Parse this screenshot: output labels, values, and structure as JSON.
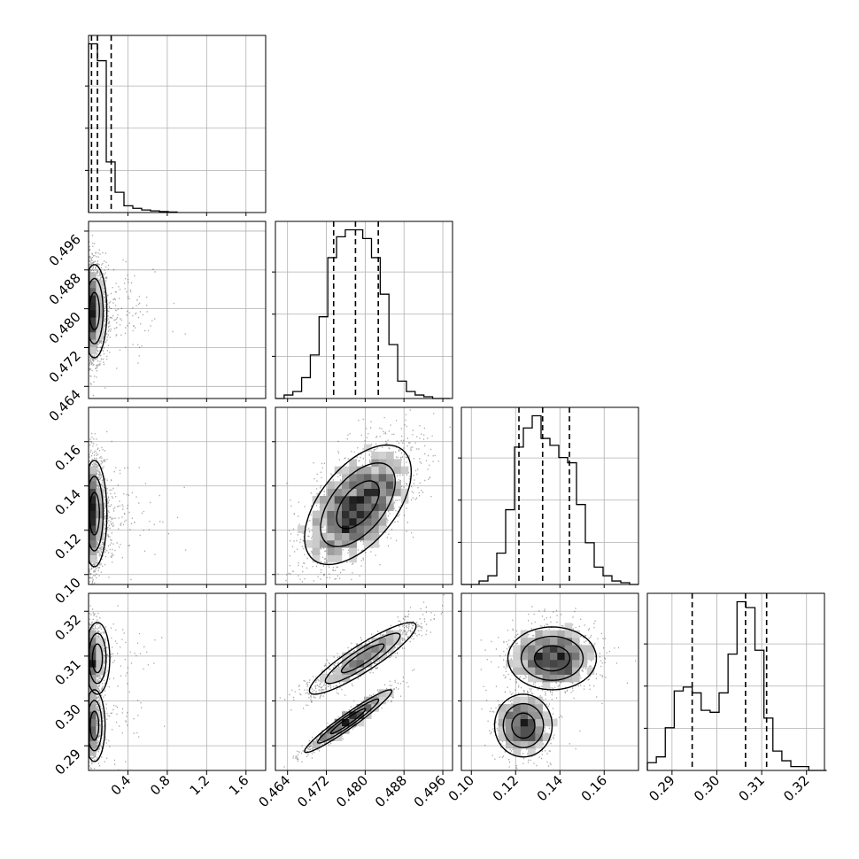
{
  "chart_data": {
    "type": "corner",
    "title": "",
    "grid": true,
    "parameters": [
      {
        "index": 0,
        "range": [
          0.0,
          1.8
        ],
        "ticks": [
          0.4,
          0.8,
          1.2,
          1.6
        ],
        "tick_labels": [
          "0.4",
          "0.8",
          "1.2",
          "1.6"
        ],
        "quantiles": [
          0.03,
          0.09,
          0.23
        ]
      },
      {
        "index": 1,
        "range": [
          0.4615,
          0.498
        ],
        "ticks": [
          0.464,
          0.472,
          0.48,
          0.488,
          0.496
        ],
        "tick_labels": [
          "0.464",
          "0.472",
          "0.480",
          "0.488",
          "0.496"
        ],
        "quantiles": [
          0.4735,
          0.478,
          0.4827
        ]
      },
      {
        "index": 2,
        "range": [
          0.0955,
          0.1755
        ],
        "ticks": [
          0.1,
          0.12,
          0.14,
          0.16
        ],
        "tick_labels": [
          "0.10",
          "0.12",
          "0.14",
          "0.16"
        ],
        "quantiles": [
          0.1215,
          0.1322,
          0.1443
        ]
      },
      {
        "index": 3,
        "range": [
          0.2845,
          0.324
        ],
        "ticks": [
          0.29,
          0.3,
          0.31,
          0.32
        ],
        "tick_labels": [
          "0.29",
          "0.30",
          "0.31",
          "0.32"
        ],
        "quantiles": [
          0.2945,
          0.3064,
          0.3111
        ]
      }
    ],
    "histograms": [
      {
        "param": 0,
        "bin_edges": [
          0.0,
          0.09,
          0.18,
          0.27,
          0.36,
          0.45,
          0.54,
          0.63,
          0.72,
          0.81,
          0.9
        ],
        "counts": [
          1.0,
          0.9,
          0.3,
          0.12,
          0.04,
          0.025,
          0.015,
          0.01,
          0.006,
          0.003
        ]
      },
      {
        "param": 1,
        "bin_edges": [
          0.4615,
          0.4633,
          0.4651,
          0.4669,
          0.4687,
          0.4705,
          0.4723,
          0.4741,
          0.4759,
          0.4777,
          0.4795,
          0.4813,
          0.4831,
          0.4849,
          0.4867,
          0.4885,
          0.4903,
          0.4921,
          0.4939,
          0.4957,
          0.4975
        ],
        "counts": [
          0.0,
          0.02,
          0.04,
          0.12,
          0.25,
          0.47,
          0.81,
          0.93,
          0.97,
          0.97,
          0.92,
          0.81,
          0.6,
          0.31,
          0.1,
          0.04,
          0.02,
          0.01,
          0.0,
          0.0
        ]
      },
      {
        "param": 2,
        "bin_edges": [
          0.0955,
          0.0995,
          0.1035,
          0.1075,
          0.1115,
          0.1155,
          0.1195,
          0.1235,
          0.1275,
          0.1315,
          0.1355,
          0.1395,
          0.1435,
          0.1475,
          0.1515,
          0.1555,
          0.1595,
          0.1635,
          0.1675,
          0.1715,
          0.1755
        ],
        "counts": [
          0.0,
          0.0,
          0.02,
          0.05,
          0.18,
          0.43,
          0.79,
          0.9,
          0.97,
          0.84,
          0.8,
          0.73,
          0.7,
          0.46,
          0.24,
          0.1,
          0.05,
          0.02,
          0.01,
          0.0
        ]
      },
      {
        "param": 3,
        "bin_edges": [
          0.2845,
          0.2865,
          0.2885,
          0.2905,
          0.2925,
          0.2945,
          0.2965,
          0.2985,
          0.3005,
          0.3025,
          0.3045,
          0.3065,
          0.3085,
          0.3105,
          0.3125,
          0.3145,
          0.3165,
          0.3185,
          0.3205,
          0.3225,
          0.3245
        ],
        "counts": [
          0.04,
          0.07,
          0.22,
          0.41,
          0.43,
          0.4,
          0.31,
          0.3,
          0.4,
          0.6,
          0.87,
          0.84,
          0.62,
          0.27,
          0.1,
          0.05,
          0.02,
          0.02,
          0.0,
          0.0
        ]
      }
    ],
    "scatter_panels": [
      {
        "x": 0,
        "y": 1,
        "modes": [
          {
            "x": 0.06,
            "y": 0.4795,
            "sx": 0.07,
            "sy": 0.0048,
            "w": 1.0
          }
        ]
      },
      {
        "x": 0,
        "y": 2,
        "modes": [
          {
            "x": 0.06,
            "y": 0.1275,
            "sx": 0.07,
            "sy": 0.012,
            "w": 1.0
          }
        ]
      },
      {
        "x": 0,
        "y": 3,
        "modes": [
          {
            "x": 0.06,
            "y": 0.2945,
            "sx": 0.06,
            "sy": 0.004,
            "w": 0.45
          },
          {
            "x": 0.09,
            "y": 0.3095,
            "sx": 0.07,
            "sy": 0.004,
            "w": 0.55
          }
        ]
      },
      {
        "x": 1,
        "y": 2,
        "modes": [
          {
            "x": 0.4785,
            "y": 0.1315,
            "sx": 0.0055,
            "sy": 0.0135,
            "rho": 0.55,
            "w": 1.0
          }
        ]
      },
      {
        "x": 1,
        "y": 3,
        "modes": [
          {
            "x": 0.4765,
            "y": 0.2955,
            "sx": 0.0045,
            "sy": 0.0035,
            "rho": 0.96,
            "w": 0.45
          },
          {
            "x": 0.4795,
            "y": 0.3095,
            "sx": 0.0055,
            "sy": 0.004,
            "rho": 0.9,
            "w": 0.55
          }
        ]
      },
      {
        "x": 2,
        "y": 3,
        "modes": [
          {
            "x": 0.1235,
            "y": 0.2945,
            "sx": 0.0065,
            "sy": 0.0035,
            "w": 0.4
          },
          {
            "x": 0.1365,
            "y": 0.3095,
            "sx": 0.01,
            "sy": 0.0035,
            "w": 0.6
          }
        ]
      }
    ]
  }
}
